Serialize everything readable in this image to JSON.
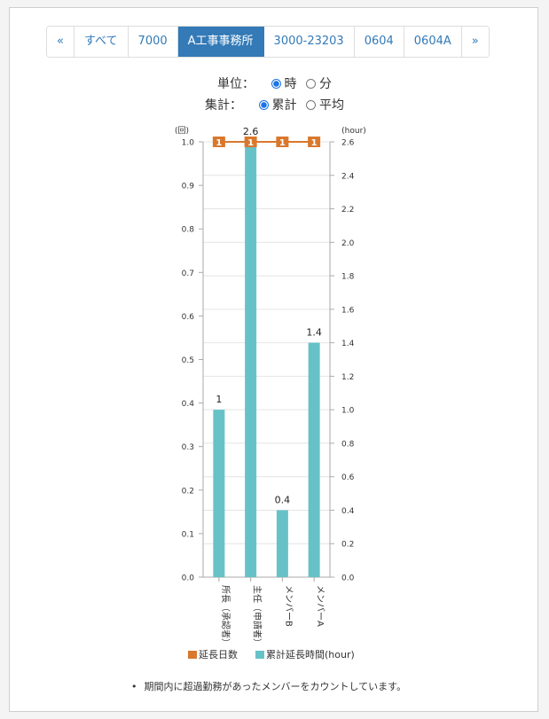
{
  "pager": {
    "items": [
      {
        "label": "«",
        "active": false
      },
      {
        "label": "すべて",
        "active": false
      },
      {
        "label": "7000",
        "active": false
      },
      {
        "label": "A工事事務所",
        "active": true
      },
      {
        "label": "3000-23203",
        "active": false
      },
      {
        "label": "0604",
        "active": false
      },
      {
        "label": "0604A",
        "active": false
      },
      {
        "label": "»",
        "active": false
      }
    ]
  },
  "options": {
    "unit_label": "単位：",
    "unit_hour": "時",
    "unit_minute": "分",
    "agg_label": "集計：",
    "agg_total": "累計",
    "agg_average": "平均"
  },
  "chart_data": {
    "type": "bar",
    "categories": [
      "所長（承認者）",
      "主任（申請者）",
      "メンバーB",
      "メンバーA"
    ],
    "series": [
      {
        "name": "延長日数",
        "type": "line",
        "axis": "left",
        "values": [
          1,
          1,
          1,
          1
        ],
        "color": "#d9782d"
      },
      {
        "name": "累計延長時間(hour)",
        "type": "bar",
        "axis": "right",
        "values": [
          1,
          2.6,
          0.4,
          1.4
        ],
        "color": "#66c2c7"
      }
    ],
    "y_left": {
      "unit": "(回)",
      "min": 0,
      "max": 1.0,
      "ticks": [
        "0.0",
        "0.1",
        "0.2",
        "0.3",
        "0.4",
        "0.5",
        "0.6",
        "0.7",
        "0.8",
        "0.9",
        "1.0"
      ]
    },
    "y_right": {
      "unit": "(hour)",
      "min": 0,
      "max": 2.6,
      "ticks": [
        "0.0",
        "0.2",
        "0.4",
        "0.6",
        "0.8",
        "1.0",
        "1.2",
        "1.4",
        "1.6",
        "1.8",
        "2.0",
        "2.2",
        "2.4",
        "2.6"
      ]
    },
    "bar_labels": [
      "1",
      "2.6",
      "0.4",
      "1.4"
    ],
    "line_labels": [
      "1",
      "1",
      "1",
      "1"
    ],
    "legend_position": "bottom",
    "grid": true
  },
  "footnote": "期間内に超過勤務があったメンバーをカウントしています。"
}
